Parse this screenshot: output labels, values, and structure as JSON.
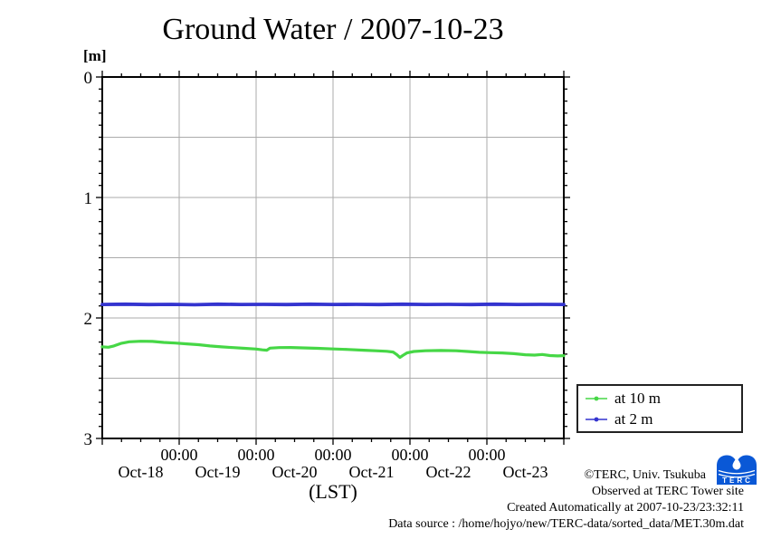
{
  "title": "Ground Water / 2007-10-23",
  "y_axis": {
    "unit": "[m]"
  },
  "x_axis": {
    "title": "(LST)"
  },
  "legend": {
    "items": [
      {
        "label": "at 10 m",
        "color": "#46d746"
      },
      {
        "label": "at 2 m",
        "color": "#3434cf"
      }
    ]
  },
  "annotations": {
    "copyright": "©TERC, Univ. Tsukuba",
    "observed": "Observed at TERC Tower site",
    "created": "Created Automatically at 2007-10-23/23:32:11",
    "data_source": "Data source : /home/hojyo/new/TERC-data/sorted_data/MET.30m.dat"
  },
  "logo": {
    "text": "TERC",
    "color": "#0a58d6"
  },
  "colors": {
    "grid": "#ababab",
    "axis": "#000000",
    "background": "#ffffff",
    "series_at_10m": "#46d746",
    "series_at_2m": "#3434cf",
    "logo_blue": "#0a58d6"
  },
  "chart_data": {
    "type": "line",
    "title": "Ground Water / 2007-10-23",
    "xlabel": "(LST)",
    "ylabel": "[m]",
    "x_unit": "days since 2007-10-18 00:00 LST",
    "xlim": [
      0,
      6
    ],
    "ylim": [
      0,
      3
    ],
    "y_inverted_depth_m": true,
    "grid": true,
    "x_grid_days": [
      1,
      2,
      3,
      4,
      5
    ],
    "y_grid_m": [
      0.5,
      1,
      1.5,
      2,
      2.5
    ],
    "x_tick_label": "00:00",
    "x_day_labels": [
      "Oct-18",
      "Oct-19",
      "Oct-20",
      "Oct-21",
      "Oct-22",
      "Oct-23"
    ],
    "y_major_ticks": [
      0,
      1,
      2,
      3
    ],
    "legend_position": "outside-right-bottom",
    "series": [
      {
        "name": "at 10 m",
        "color": "#46d746",
        "x": [
          0.0,
          0.08,
          0.15,
          0.25,
          0.35,
          0.5,
          0.65,
          0.8,
          0.95,
          1.1,
          1.25,
          1.4,
          1.55,
          1.7,
          1.85,
          2.0,
          2.08,
          2.14,
          2.18,
          2.3,
          2.45,
          2.6,
          2.8,
          3.0,
          3.2,
          3.4,
          3.55,
          3.7,
          3.78,
          3.83,
          3.87,
          3.91,
          3.96,
          4.05,
          4.2,
          4.4,
          4.6,
          4.75,
          4.9,
          5.05,
          5.2,
          5.35,
          5.5,
          5.62,
          5.72,
          5.82,
          5.92,
          6.0
        ],
        "y": [
          2.24,
          2.243,
          2.232,
          2.21,
          2.198,
          2.193,
          2.195,
          2.203,
          2.208,
          2.215,
          2.222,
          2.232,
          2.24,
          2.246,
          2.252,
          2.258,
          2.265,
          2.268,
          2.25,
          2.246,
          2.245,
          2.248,
          2.252,
          2.257,
          2.262,
          2.268,
          2.272,
          2.277,
          2.283,
          2.305,
          2.328,
          2.31,
          2.29,
          2.278,
          2.272,
          2.27,
          2.272,
          2.278,
          2.285,
          2.288,
          2.29,
          2.296,
          2.305,
          2.308,
          2.303,
          2.312,
          2.315,
          2.313
        ]
      },
      {
        "name": "at 2 m",
        "color": "#3434cf",
        "x": [
          0.0,
          0.3,
          0.6,
          0.9,
          1.2,
          1.5,
          1.8,
          2.1,
          2.4,
          2.7,
          3.0,
          3.3,
          3.6,
          3.9,
          4.2,
          4.5,
          4.8,
          5.1,
          5.4,
          5.7,
          6.0
        ],
        "y": [
          1.888,
          1.886,
          1.889,
          1.887,
          1.89,
          1.886,
          1.888,
          1.887,
          1.889,
          1.886,
          1.888,
          1.887,
          1.889,
          1.886,
          1.888,
          1.887,
          1.889,
          1.886,
          1.888,
          1.887,
          1.888
        ]
      }
    ]
  }
}
